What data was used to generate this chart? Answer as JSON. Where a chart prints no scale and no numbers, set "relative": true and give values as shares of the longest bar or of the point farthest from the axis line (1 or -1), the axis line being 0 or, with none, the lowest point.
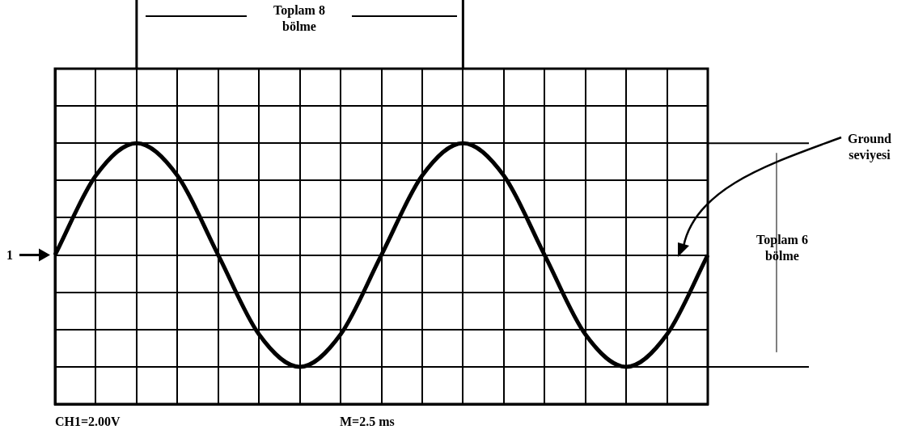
{
  "chart_data": {
    "type": "line",
    "relative": true,
    "categories": [
      null,
      null,
      null,
      null,
      null,
      null,
      null,
      null,
      null,
      null,
      null,
      null,
      null,
      null,
      null,
      null,
      null
    ],
    "series": [
      {
        "color": "#000000",
        "values": [
          0,
          0.71,
          1,
          0.71,
          0,
          -0.71,
          -1,
          -0.71,
          0,
          0.71,
          1,
          0.71,
          0,
          -0.71,
          -1,
          -0.71,
          0
        ]
      }
    ],
    "grid": true,
    "marker": "none",
    "line_style": "solid",
    "annotations": [
      "Toplam 8 bölme",
      "Toplam 6 bölme",
      "Ground seviyesi",
      "1",
      "CH1=2.00V",
      "M=2.5 ms"
    ]
  }
}
